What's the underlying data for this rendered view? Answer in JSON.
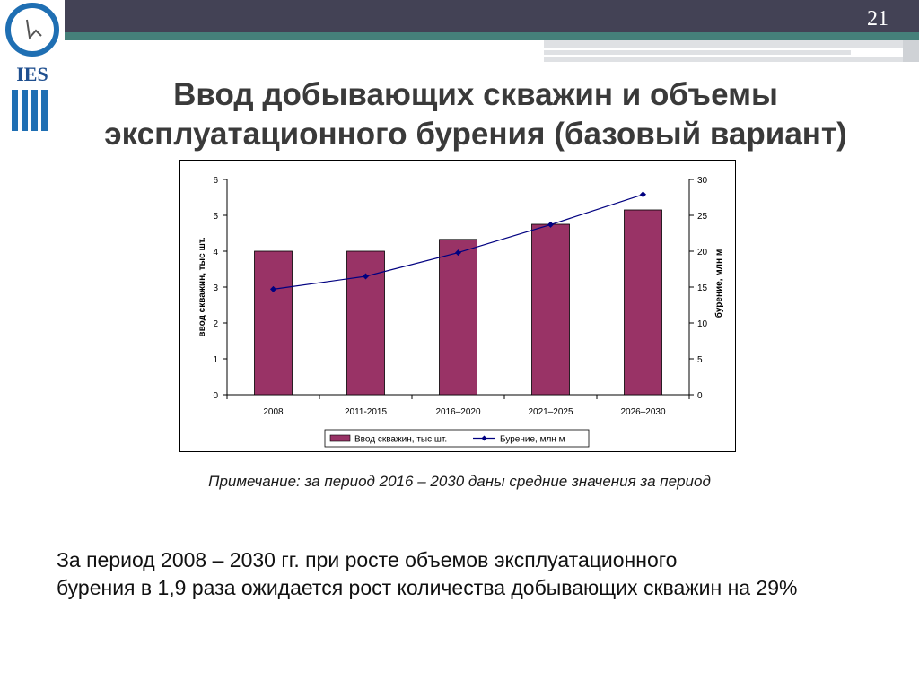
{
  "slide": {
    "number": "21",
    "logo_text": "IES",
    "title_line1": "Ввод добывающих скважин и объемы",
    "title_line2": "эксплуатационного бурения (базовый вариант)",
    "note": "Примечание: за период 2016 – 2030 даны средние значения за период",
    "summary_line1": "За период  2008 – 2030 гг. при росте объемов эксплуатационного",
    "summary_line2": "бурения в 1,9 раза ожидается рост количества добывающих скважин на 29%"
  },
  "colors": {
    "bar": "#993366",
    "line": "#000080",
    "header_dark": "#434255",
    "header_teal": "#45807a",
    "logo_blue": "#1f6fb3"
  },
  "chart_data": {
    "type": "bar",
    "categories": [
      "2008",
      "2011-2015",
      "2016–2020",
      "2021–2025",
      "2026–2030"
    ],
    "series": [
      {
        "name": "Ввод скважин, тыс.шт.",
        "type": "bar",
        "axis": "left",
        "values": [
          4.0,
          4.0,
          4.33,
          4.75,
          5.15
        ]
      },
      {
        "name": "Бурение, млн м",
        "type": "line",
        "axis": "right",
        "values": [
          14.7,
          16.5,
          19.8,
          23.7,
          27.9
        ]
      }
    ],
    "ylabel": "ввод скважин, тыс шт.",
    "y2label": "бурение, млн м",
    "ylim": [
      0,
      6
    ],
    "y2lim": [
      0,
      30
    ],
    "yticks": [
      "0",
      "1",
      "2",
      "3",
      "4",
      "5",
      "6"
    ],
    "y2ticks": [
      "0",
      "5",
      "10",
      "15",
      "20",
      "25",
      "30"
    ],
    "legend_position": "bottom"
  }
}
